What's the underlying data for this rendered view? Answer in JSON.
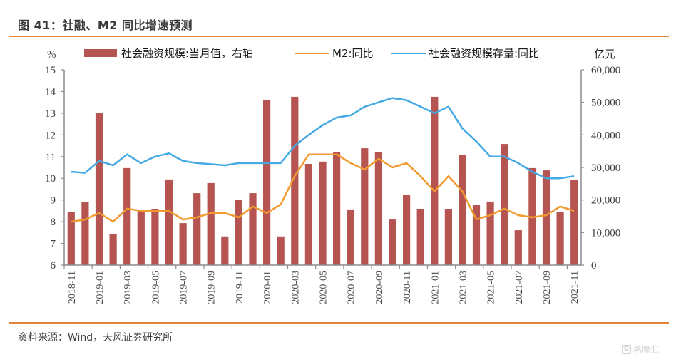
{
  "header": {
    "title": "图 41：社融、M2 同比增速预测"
  },
  "footer": {
    "source": "资料来源：Wind，天风证券研究所",
    "watermark": "格隆汇",
    "watermark_logo": "G"
  },
  "colors": {
    "bar": "#b55450",
    "m2": "#f19a30",
    "stock": "#45a9e4",
    "rule": "#e0853a",
    "axis": "#8c8c8c"
  },
  "chart_data": {
    "type": "bar",
    "title": "社融、M2 同比增速预测",
    "left_axis": {
      "label": "%",
      "range": [
        6,
        15
      ],
      "ticks": [
        "6",
        "7",
        "8",
        "9",
        "10",
        "11",
        "12",
        "13",
        "14",
        "15"
      ]
    },
    "right_axis": {
      "label": "亿元",
      "range": [
        0,
        60000
      ],
      "ticks": [
        "0",
        "10,000",
        "20,000",
        "30,000",
        "40,000",
        "50,000",
        "60,000"
      ]
    },
    "x_tick_labels": [
      "2018-11",
      "2019-01",
      "2019-03",
      "2019-05",
      "2019-07",
      "2019-09",
      "2019-11",
      "2020-01",
      "2020-03",
      "2020-05",
      "2020-07",
      "2020-09",
      "2020-11",
      "2021-01",
      "2021-03",
      "2021-05",
      "2021-07",
      "2021-09",
      "2021-11"
    ],
    "categories": [
      "2018-11",
      "2018-12",
      "2019-01",
      "2019-02",
      "2019-03",
      "2019-04",
      "2019-05",
      "2019-06",
      "2019-07",
      "2019-08",
      "2019-09",
      "2019-10",
      "2019-11",
      "2019-12",
      "2020-01",
      "2020-02",
      "2020-03",
      "2020-04",
      "2020-05",
      "2020-06",
      "2020-07",
      "2020-08",
      "2020-09",
      "2020-10",
      "2020-11",
      "2020-12",
      "2021-01",
      "2021-02",
      "2021-03",
      "2021-04",
      "2021-05",
      "2021-06",
      "2021-07",
      "2021-08",
      "2021-09",
      "2021-10",
      "2021-11"
    ],
    "legend_position": "top",
    "grid": false,
    "series": [
      {
        "name": "社会融资规模:当月值，右轴",
        "type": "bar",
        "axis": "right",
        "values": [
          16200,
          19300,
          46700,
          9600,
          29800,
          16900,
          17300,
          26300,
          12900,
          22100,
          25200,
          8800,
          20100,
          22100,
          50600,
          8800,
          51700,
          31100,
          31800,
          34600,
          17100,
          35900,
          34600,
          14000,
          21500,
          17300,
          51700,
          17300,
          33900,
          18600,
          19500,
          37200,
          10700,
          29800,
          29100,
          16200,
          26200
        ]
      },
      {
        "name": "M2:同比",
        "type": "line",
        "axis": "left",
        "values": [
          8.0,
          8.1,
          8.4,
          8.0,
          8.6,
          8.5,
          8.5,
          8.5,
          8.1,
          8.2,
          8.4,
          8.4,
          8.2,
          8.7,
          8.4,
          8.8,
          10.1,
          11.1,
          11.1,
          11.1,
          10.7,
          10.4,
          10.9,
          10.5,
          10.7,
          10.1,
          9.4,
          10.1,
          9.4,
          8.1,
          8.3,
          8.6,
          8.3,
          8.2,
          8.3,
          8.7,
          8.5
        ]
      },
      {
        "name": "社会融资规模存量:同比",
        "type": "line",
        "axis": "left",
        "values": [
          10.3,
          10.25,
          10.8,
          10.6,
          11.1,
          10.7,
          11.0,
          11.15,
          10.8,
          10.7,
          10.65,
          10.6,
          10.7,
          10.7,
          10.7,
          10.7,
          11.5,
          12.0,
          12.45,
          12.8,
          12.9,
          13.3,
          13.5,
          13.7,
          13.6,
          13.3,
          13.0,
          13.3,
          12.3,
          11.7,
          11.0,
          11.0,
          10.7,
          10.3,
          10.0,
          10.0,
          10.1
        ]
      }
    ]
  }
}
